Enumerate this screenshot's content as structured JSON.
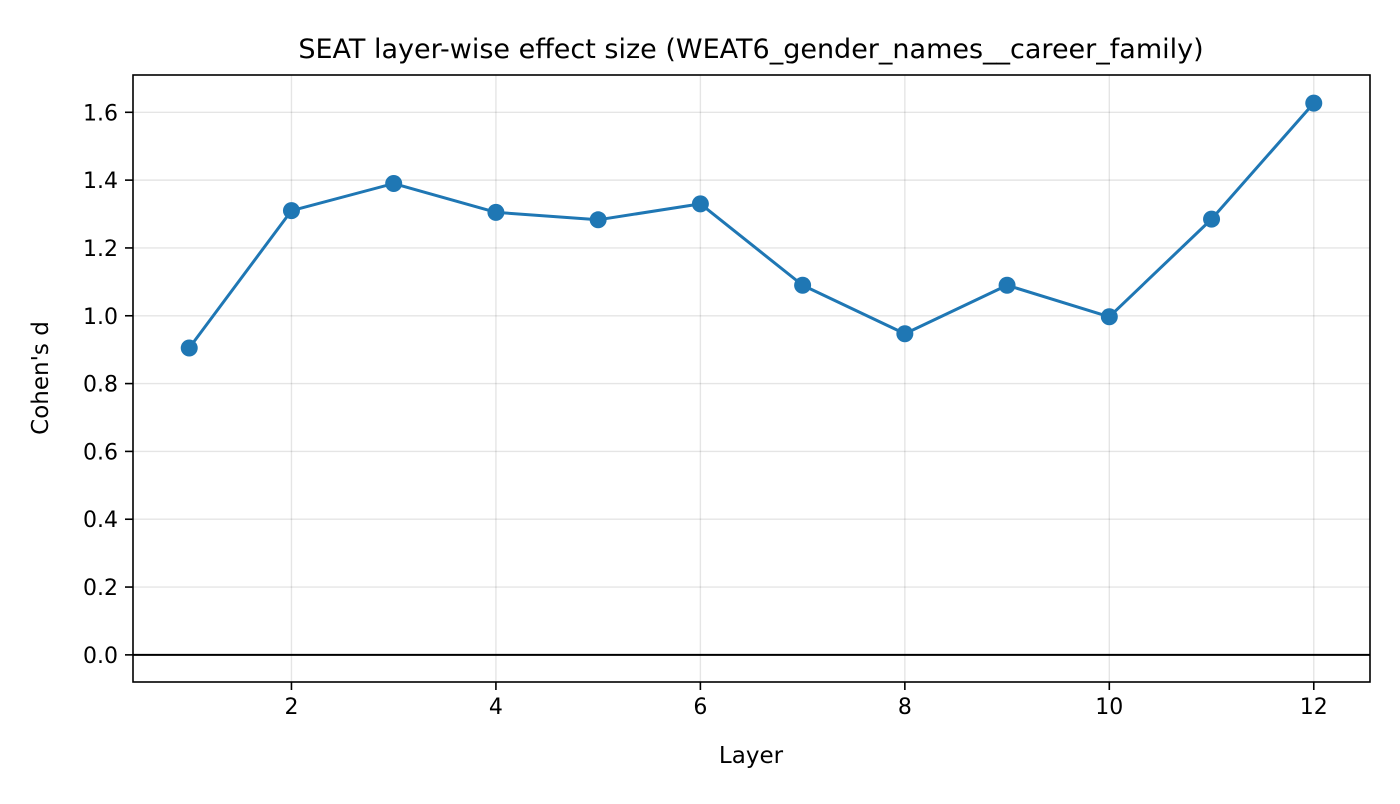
{
  "chart_data": {
    "type": "line",
    "title": "SEAT layer-wise effect size (WEAT6_gender_names__career_family)",
    "xlabel": "Layer",
    "ylabel": "Cohen's d",
    "x": [
      1,
      2,
      3,
      4,
      5,
      6,
      7,
      8,
      9,
      10,
      11,
      12
    ],
    "series": [
      {
        "values": [
          0.905,
          1.31,
          1.39,
          1.305,
          1.283,
          1.33,
          1.09,
          0.947,
          1.09,
          0.997,
          1.285,
          1.627
        ],
        "color": "#1f77b4",
        "marker": "circle"
      }
    ],
    "xlim": [
      0.45,
      12.55
    ],
    "ylim": [
      -0.08,
      1.71
    ],
    "xticks": [
      2,
      4,
      6,
      8,
      10,
      12
    ],
    "xtick_labels": [
      "2",
      "4",
      "6",
      "8",
      "10",
      "12"
    ],
    "yticks": [
      0.0,
      0.2,
      0.4,
      0.6,
      0.8,
      1.0,
      1.2,
      1.4,
      1.6
    ],
    "ytick_labels": [
      "0.0",
      "0.2",
      "0.4",
      "0.6",
      "0.8",
      "1.0",
      "1.2",
      "1.4",
      "1.6"
    ],
    "grid": true,
    "reference_line": {
      "y": 0,
      "color": "#000000"
    },
    "legend": "none"
  }
}
